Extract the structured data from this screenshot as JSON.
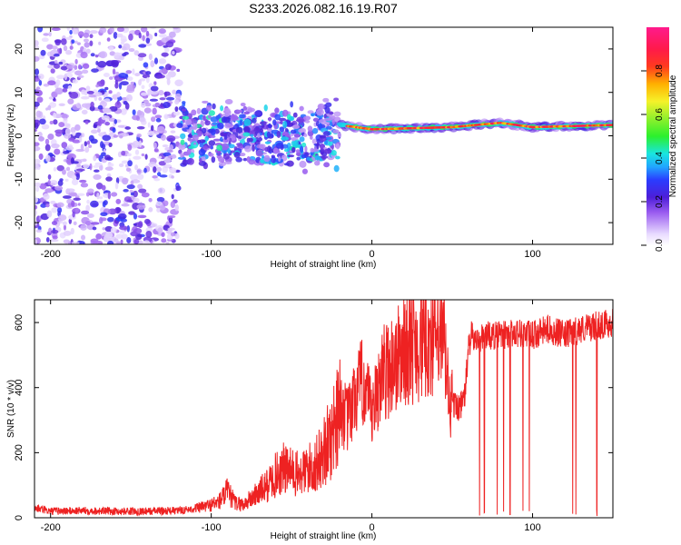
{
  "chart_data": [
    {
      "type": "heatmap",
      "title": "S233.2026.082.16.19.R07",
      "xlabel": "Height of straight line (km)",
      "ylabel": "Frequency (Hz)",
      "xlim": [
        -210,
        150
      ],
      "ylim": [
        -25,
        25
      ],
      "xticks": [
        -200,
        -100,
        0,
        100
      ],
      "yticks": [
        -20,
        -10,
        0,
        10,
        20
      ],
      "colorbar": {
        "label": "Normalized spectral amplitude",
        "range": [
          0,
          1
        ],
        "ticks": [
          0,
          0.2,
          0.4,
          0.6,
          0.8
        ]
      },
      "regions": [
        {
          "name": "noise",
          "x": [
            -210,
            -120
          ],
          "frequency_range": [
            -25,
            25
          ],
          "amplitude_range": [
            0.05,
            0.3
          ]
        },
        {
          "name": "transition",
          "x": [
            -120,
            -20
          ],
          "frequency_range": [
            -10,
            6
          ],
          "amplitude_range": [
            0.1,
            0.45
          ]
        },
        {
          "name": "tone",
          "x": [
            -20,
            150
          ],
          "frequency_hz": [
            [
              -20,
              2.5
            ],
            [
              0,
              1.5
            ],
            [
              50,
              2
            ],
            [
              80,
              3
            ],
            [
              100,
              2
            ],
            [
              150,
              2.5
            ]
          ],
          "amplitude_range": [
            0.7,
            0.95
          ]
        }
      ]
    },
    {
      "type": "line",
      "xlabel": "Height of straight line (km)",
      "ylabel": "SNR (10 * v/v)",
      "xlim": [
        -210,
        150
      ],
      "ylim": [
        0,
        670
      ],
      "xticks": [
        -200,
        -100,
        0,
        100
      ],
      "yticks": [
        0,
        200,
        400,
        600
      ],
      "series": [
        {
          "name": "SNR",
          "color": "#ee2222",
          "x": [
            -210,
            -200,
            -180,
            -160,
            -140,
            -120,
            -110,
            -100,
            -95,
            -90,
            -85,
            -80,
            -75,
            -70,
            -65,
            -60,
            -55,
            -50,
            -45,
            -40,
            -35,
            -30,
            -25,
            -20,
            -18,
            -15,
            -12,
            -10,
            -5,
            0,
            5,
            10,
            15,
            20,
            25,
            30,
            35,
            40,
            45,
            48,
            50,
            55,
            58,
            60,
            62,
            65,
            70,
            80,
            90,
            100,
            110,
            120,
            130,
            140,
            150
          ],
          "values": [
            30,
            20,
            22,
            20,
            20,
            22,
            28,
            40,
            50,
            80,
            45,
            40,
            60,
            80,
            100,
            130,
            150,
            140,
            130,
            150,
            160,
            200,
            250,
            370,
            320,
            300,
            340,
            380,
            420,
            300,
            430,
            460,
            480,
            520,
            530,
            540,
            550,
            560,
            540,
            360,
            350,
            340,
            380,
            520,
            560,
            540,
            560,
            560,
            570,
            560,
            580,
            560,
            580,
            590,
            600
          ]
        }
      ]
    }
  ]
}
